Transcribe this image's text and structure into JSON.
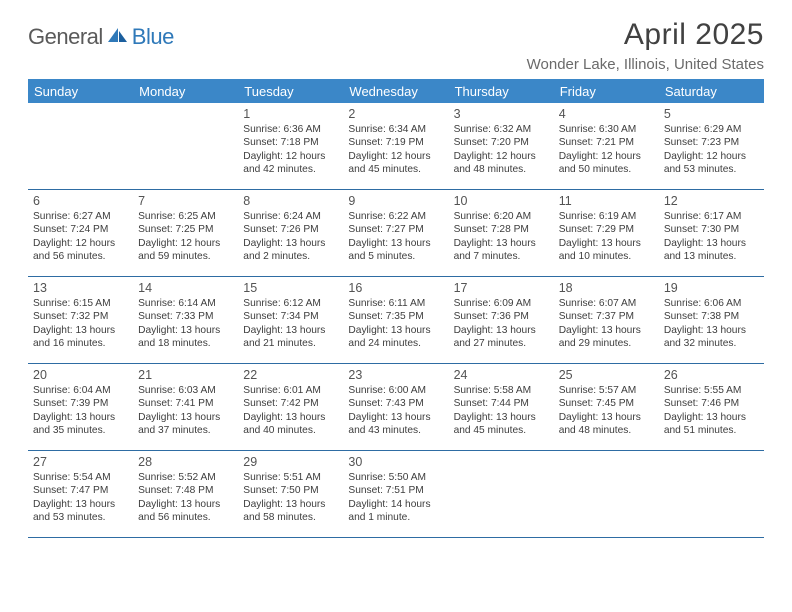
{
  "logo": {
    "part1": "General",
    "part2": "Blue"
  },
  "title": "April 2025",
  "subtitle": "Wonder Lake, Illinois, United States",
  "colors": {
    "header_bg": "#3b87c8",
    "header_text": "#ffffff",
    "title_color": "#414141",
    "subtitle_color": "#6a6a6a",
    "cell_border": "#2e6ca3",
    "logo_gray": "#5a5a5a",
    "logo_blue": "#2f79b9",
    "text": "#3d3d3d"
  },
  "day_names": [
    "Sunday",
    "Monday",
    "Tuesday",
    "Wednesday",
    "Thursday",
    "Friday",
    "Saturday"
  ],
  "weeks": [
    [
      null,
      null,
      {
        "d": "1",
        "sr": "Sunrise: 6:36 AM",
        "ss": "Sunset: 7:18 PM",
        "dl1": "Daylight: 12 hours",
        "dl2": "and 42 minutes."
      },
      {
        "d": "2",
        "sr": "Sunrise: 6:34 AM",
        "ss": "Sunset: 7:19 PM",
        "dl1": "Daylight: 12 hours",
        "dl2": "and 45 minutes."
      },
      {
        "d": "3",
        "sr": "Sunrise: 6:32 AM",
        "ss": "Sunset: 7:20 PM",
        "dl1": "Daylight: 12 hours",
        "dl2": "and 48 minutes."
      },
      {
        "d": "4",
        "sr": "Sunrise: 6:30 AM",
        "ss": "Sunset: 7:21 PM",
        "dl1": "Daylight: 12 hours",
        "dl2": "and 50 minutes."
      },
      {
        "d": "5",
        "sr": "Sunrise: 6:29 AM",
        "ss": "Sunset: 7:23 PM",
        "dl1": "Daylight: 12 hours",
        "dl2": "and 53 minutes."
      }
    ],
    [
      {
        "d": "6",
        "sr": "Sunrise: 6:27 AM",
        "ss": "Sunset: 7:24 PM",
        "dl1": "Daylight: 12 hours",
        "dl2": "and 56 minutes."
      },
      {
        "d": "7",
        "sr": "Sunrise: 6:25 AM",
        "ss": "Sunset: 7:25 PM",
        "dl1": "Daylight: 12 hours",
        "dl2": "and 59 minutes."
      },
      {
        "d": "8",
        "sr": "Sunrise: 6:24 AM",
        "ss": "Sunset: 7:26 PM",
        "dl1": "Daylight: 13 hours",
        "dl2": "and 2 minutes."
      },
      {
        "d": "9",
        "sr": "Sunrise: 6:22 AM",
        "ss": "Sunset: 7:27 PM",
        "dl1": "Daylight: 13 hours",
        "dl2": "and 5 minutes."
      },
      {
        "d": "10",
        "sr": "Sunrise: 6:20 AM",
        "ss": "Sunset: 7:28 PM",
        "dl1": "Daylight: 13 hours",
        "dl2": "and 7 minutes."
      },
      {
        "d": "11",
        "sr": "Sunrise: 6:19 AM",
        "ss": "Sunset: 7:29 PM",
        "dl1": "Daylight: 13 hours",
        "dl2": "and 10 minutes."
      },
      {
        "d": "12",
        "sr": "Sunrise: 6:17 AM",
        "ss": "Sunset: 7:30 PM",
        "dl1": "Daylight: 13 hours",
        "dl2": "and 13 minutes."
      }
    ],
    [
      {
        "d": "13",
        "sr": "Sunrise: 6:15 AM",
        "ss": "Sunset: 7:32 PM",
        "dl1": "Daylight: 13 hours",
        "dl2": "and 16 minutes."
      },
      {
        "d": "14",
        "sr": "Sunrise: 6:14 AM",
        "ss": "Sunset: 7:33 PM",
        "dl1": "Daylight: 13 hours",
        "dl2": "and 18 minutes."
      },
      {
        "d": "15",
        "sr": "Sunrise: 6:12 AM",
        "ss": "Sunset: 7:34 PM",
        "dl1": "Daylight: 13 hours",
        "dl2": "and 21 minutes."
      },
      {
        "d": "16",
        "sr": "Sunrise: 6:11 AM",
        "ss": "Sunset: 7:35 PM",
        "dl1": "Daylight: 13 hours",
        "dl2": "and 24 minutes."
      },
      {
        "d": "17",
        "sr": "Sunrise: 6:09 AM",
        "ss": "Sunset: 7:36 PM",
        "dl1": "Daylight: 13 hours",
        "dl2": "and 27 minutes."
      },
      {
        "d": "18",
        "sr": "Sunrise: 6:07 AM",
        "ss": "Sunset: 7:37 PM",
        "dl1": "Daylight: 13 hours",
        "dl2": "and 29 minutes."
      },
      {
        "d": "19",
        "sr": "Sunrise: 6:06 AM",
        "ss": "Sunset: 7:38 PM",
        "dl1": "Daylight: 13 hours",
        "dl2": "and 32 minutes."
      }
    ],
    [
      {
        "d": "20",
        "sr": "Sunrise: 6:04 AM",
        "ss": "Sunset: 7:39 PM",
        "dl1": "Daylight: 13 hours",
        "dl2": "and 35 minutes."
      },
      {
        "d": "21",
        "sr": "Sunrise: 6:03 AM",
        "ss": "Sunset: 7:41 PM",
        "dl1": "Daylight: 13 hours",
        "dl2": "and 37 minutes."
      },
      {
        "d": "22",
        "sr": "Sunrise: 6:01 AM",
        "ss": "Sunset: 7:42 PM",
        "dl1": "Daylight: 13 hours",
        "dl2": "and 40 minutes."
      },
      {
        "d": "23",
        "sr": "Sunrise: 6:00 AM",
        "ss": "Sunset: 7:43 PM",
        "dl1": "Daylight: 13 hours",
        "dl2": "and 43 minutes."
      },
      {
        "d": "24",
        "sr": "Sunrise: 5:58 AM",
        "ss": "Sunset: 7:44 PM",
        "dl1": "Daylight: 13 hours",
        "dl2": "and 45 minutes."
      },
      {
        "d": "25",
        "sr": "Sunrise: 5:57 AM",
        "ss": "Sunset: 7:45 PM",
        "dl1": "Daylight: 13 hours",
        "dl2": "and 48 minutes."
      },
      {
        "d": "26",
        "sr": "Sunrise: 5:55 AM",
        "ss": "Sunset: 7:46 PM",
        "dl1": "Daylight: 13 hours",
        "dl2": "and 51 minutes."
      }
    ],
    [
      {
        "d": "27",
        "sr": "Sunrise: 5:54 AM",
        "ss": "Sunset: 7:47 PM",
        "dl1": "Daylight: 13 hours",
        "dl2": "and 53 minutes."
      },
      {
        "d": "28",
        "sr": "Sunrise: 5:52 AM",
        "ss": "Sunset: 7:48 PM",
        "dl1": "Daylight: 13 hours",
        "dl2": "and 56 minutes."
      },
      {
        "d": "29",
        "sr": "Sunrise: 5:51 AM",
        "ss": "Sunset: 7:50 PM",
        "dl1": "Daylight: 13 hours",
        "dl2": "and 58 minutes."
      },
      {
        "d": "30",
        "sr": "Sunrise: 5:50 AM",
        "ss": "Sunset: 7:51 PM",
        "dl1": "Daylight: 14 hours",
        "dl2": "and 1 minute."
      },
      null,
      null,
      null
    ]
  ]
}
